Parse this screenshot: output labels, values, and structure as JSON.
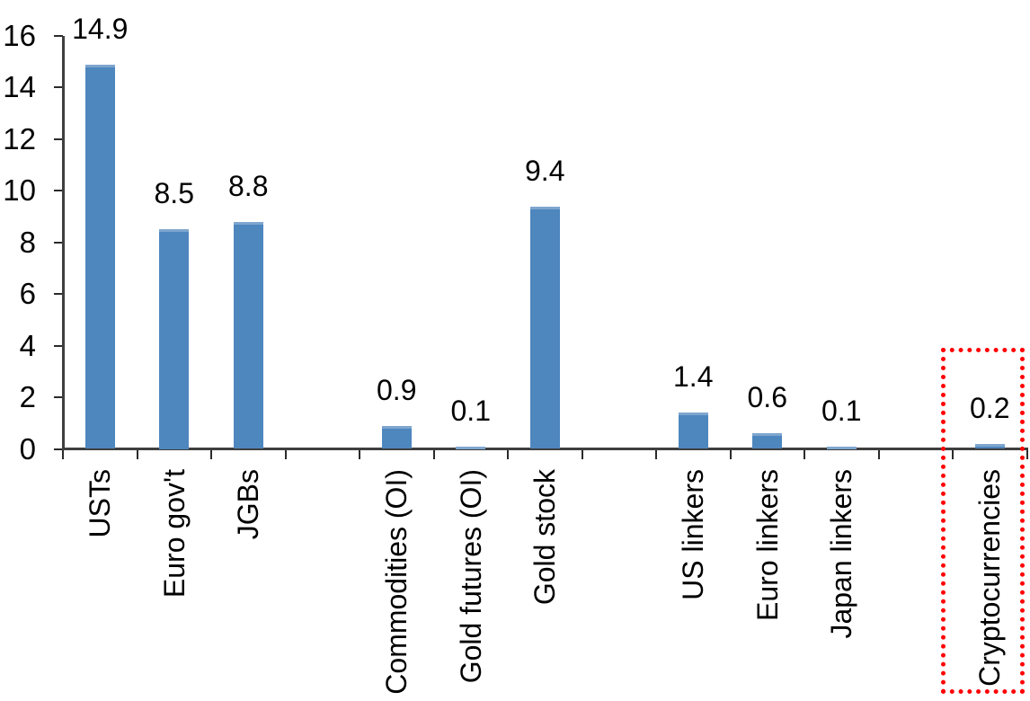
{
  "chart_data": {
    "type": "bar",
    "title": "",
    "xlabel": "",
    "ylabel": "",
    "categories": [
      "USTs",
      "Euro gov't",
      "JGBs",
      "Commodities (OI)",
      "Gold futures (OI)",
      "Gold stock",
      "US linkers",
      "Euro linkers",
      "Japan linkers",
      "Cryptocurrencies"
    ],
    "values": [
      14.9,
      8.5,
      8.8,
      0.9,
      0.1,
      9.4,
      1.4,
      0.6,
      0.1,
      0.2
    ],
    "data_labels": [
      "14.9",
      "8.5",
      "8.8",
      "0.9",
      "0.1",
      "9.4",
      "1.4",
      "0.6",
      "0.1",
      "0.2"
    ],
    "slots": [
      0,
      1,
      2,
      4,
      5,
      6,
      8,
      9,
      10,
      12
    ],
    "total_slots": 13,
    "groups": [
      [
        "USTs",
        "Euro gov't",
        "JGBs"
      ],
      [
        "Commodities (OI)",
        "Gold futures (OI)",
        "Gold stock"
      ],
      [
        "US linkers",
        "Euro linkers",
        "Japan linkers"
      ],
      [
        "Cryptocurrencies"
      ]
    ],
    "ylim": [
      0,
      16
    ],
    "yticks": [
      0,
      2,
      4,
      6,
      8,
      10,
      12,
      14,
      16
    ],
    "grid": false,
    "legend": false,
    "bar_color": "#4e86be",
    "bar_top_edge_color": "#7ea6ce",
    "axis_color": "#3f3f3f",
    "tick_color": "#2b2b2b",
    "text_color": "#000000",
    "highlight": {
      "category": "Cryptocurrencies",
      "box_color": "#ff0000",
      "box_style": "dotted"
    }
  }
}
